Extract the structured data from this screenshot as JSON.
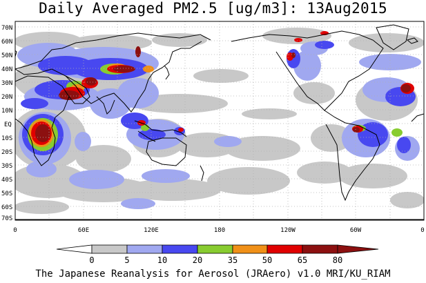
{
  "title": "Daily Averaged PM2.5 [ug/m3]: 13Aug2015",
  "footer": "The Japanese Reanalysis for Aerosol (JRAero) v1.0 MRI/KU_RIAM",
  "map": {
    "lat_labels": [
      "70N",
      "60N",
      "50N",
      "40N",
      "30N",
      "20N",
      "10N",
      "EQ",
      "10S",
      "20S",
      "30S",
      "40S",
      "50S",
      "60S",
      "70S"
    ],
    "lon_labels": [
      "0",
      "60E",
      "120E",
      "180",
      "120W",
      "60W",
      "0"
    ]
  },
  "colorbar": {
    "levels": [
      "0",
      "5",
      "10",
      "20",
      "35",
      "50",
      "65",
      "80"
    ],
    "colors": [
      "#ffffff",
      "#c8c8c8",
      "#a0a8f0",
      "#4848f0",
      "#88cc30",
      "#f09018",
      "#e00000",
      "#8c1010"
    ]
  },
  "palette": {
    "land_outline": "#000000",
    "grid": "#b0b0b0"
  }
}
